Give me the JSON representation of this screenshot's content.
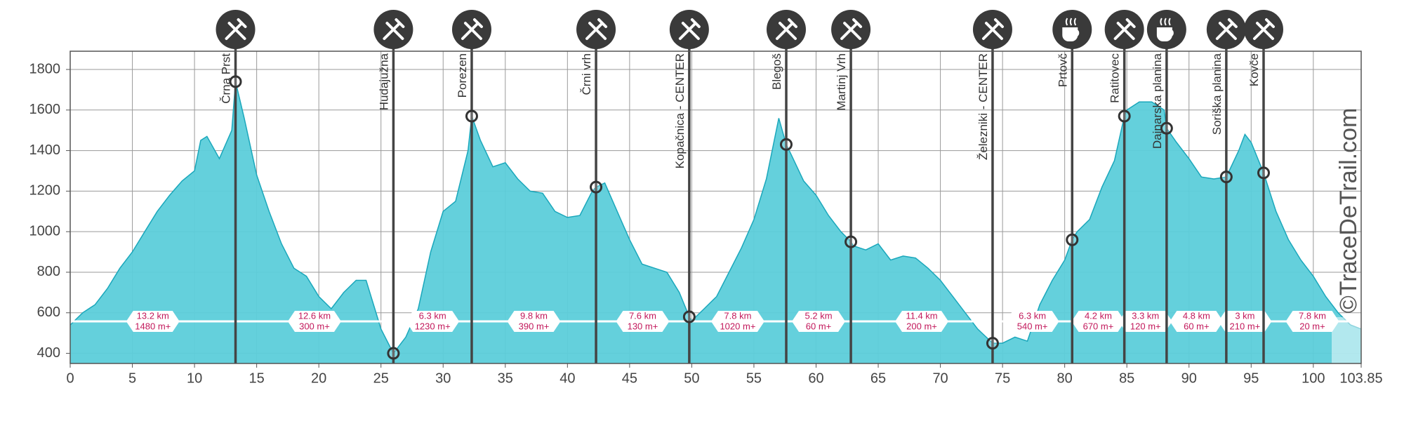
{
  "chart_data": {
    "type": "area",
    "x": [
      0,
      1,
      2,
      3,
      4,
      5,
      6,
      7,
      8,
      9,
      10,
      10.5,
      11,
      12,
      13,
      13.3,
      14,
      15,
      16,
      17,
      18,
      19,
      20,
      21,
      22,
      23,
      23.8,
      24.5,
      25,
      26,
      27,
      28,
      29,
      30,
      31,
      32,
      32.3,
      33,
      34,
      35,
      36,
      37,
      38,
      39,
      40,
      41,
      42,
      42.3,
      43,
      44,
      45,
      46,
      47,
      48,
      49,
      49.8,
      50,
      51,
      52,
      53,
      54,
      55,
      56,
      57,
      57.6,
      58,
      59,
      60,
      61,
      62,
      62.8,
      63,
      64,
      65,
      66,
      67,
      68,
      69,
      70,
      71,
      72,
      73,
      74.2,
      75,
      76,
      77,
      78,
      79,
      80,
      80.6,
      81,
      82,
      83,
      84,
      84.8,
      85,
      86,
      87,
      88,
      88.2,
      89,
      90,
      91,
      92,
      93,
      94,
      94.5,
      95,
      96,
      97,
      98,
      99,
      100,
      101,
      102,
      103,
      103.85
    ],
    "values": [
      540,
      600,
      640,
      720,
      820,
      900,
      1000,
      1100,
      1180,
      1250,
      1300,
      1450,
      1470,
      1360,
      1500,
      1740,
      1560,
      1280,
      1100,
      940,
      820,
      780,
      680,
      620,
      700,
      760,
      760,
      620,
      520,
      400,
      480,
      620,
      900,
      1100,
      1150,
      1400,
      1570,
      1450,
      1320,
      1340,
      1260,
      1200,
      1190,
      1100,
      1070,
      1080,
      1200,
      1220,
      1240,
      1100,
      960,
      840,
      820,
      800,
      700,
      580,
      560,
      620,
      680,
      800,
      920,
      1060,
      1260,
      1560,
      1430,
      1380,
      1250,
      1180,
      1080,
      1000,
      950,
      930,
      910,
      940,
      860,
      880,
      870,
      820,
      760,
      680,
      600,
      520,
      450,
      450,
      480,
      460,
      640,
      760,
      860,
      960,
      1000,
      1060,
      1220,
      1350,
      1570,
      1600,
      1640,
      1640,
      1600,
      1510,
      1440,
      1360,
      1270,
      1260,
      1270,
      1400,
      1480,
      1440,
      1290,
      1100,
      960,
      860,
      780,
      680,
      600,
      540,
      520
    ],
    "fill_color": "#5ccdda",
    "line_color": "#1aa7bb",
    "xlim": [
      0,
      103.85
    ],
    "ylim": [
      350,
      1890
    ],
    "xticks": [
      0,
      5,
      10,
      15,
      20,
      25,
      30,
      35,
      40,
      45,
      50,
      55,
      60,
      65,
      70,
      75,
      80,
      85,
      90,
      95,
      100,
      103.85
    ],
    "yticks": [
      400,
      600,
      800,
      1000,
      1200,
      1400,
      1600,
      1800
    ],
    "grid": true,
    "waypoints": [
      {
        "name": "Črna Prst",
        "km": 13.3,
        "elevation": 1740,
        "icon": "food",
        "color": "#333333"
      },
      {
        "name": "Hudajužna",
        "km": 26,
        "elevation": 400,
        "icon": "food",
        "color": "#333333"
      },
      {
        "name": "Porezen",
        "km": 32.3,
        "elevation": 1570,
        "icon": "food",
        "color": "#333333"
      },
      {
        "name": "Črni vrh",
        "km": 42.3,
        "elevation": 1220,
        "icon": "food",
        "color": "#333333"
      },
      {
        "name": "Kopačnica - CENTER",
        "km": 49.8,
        "elevation": 580,
        "icon": "food",
        "color": "#c2185b"
      },
      {
        "name": "Blegoš",
        "km": 57.6,
        "elevation": 1430,
        "icon": "food",
        "color": "#333333"
      },
      {
        "name": "Martinj Vrh",
        "km": 62.8,
        "elevation": 950,
        "icon": "food",
        "color": "#333333"
      },
      {
        "name": "Železniki - CENTER",
        "km": 74.2,
        "elevation": 450,
        "icon": "food",
        "color": "#c2185b"
      },
      {
        "name": "Prtovč",
        "km": 80.6,
        "elevation": 960,
        "icon": "coffee",
        "color": "#333333"
      },
      {
        "name": "Ratitovec",
        "km": 84.8,
        "elevation": 1570,
        "icon": "food",
        "color": "#333333"
      },
      {
        "name": "Dajnarska planina",
        "km": 88.2,
        "elevation": 1510,
        "icon": "coffee",
        "color": "#333333"
      },
      {
        "name": "Soriška planina",
        "km": 93,
        "elevation": 1270,
        "icon": "food",
        "color": "#333333"
      },
      {
        "name": "Kovče",
        "km": 96,
        "elevation": 1290,
        "icon": "food",
        "color": "#333333"
      }
    ],
    "segments": [
      {
        "distance": "13.2 km",
        "climb": "1480 m+"
      },
      {
        "distance": "12.6 km",
        "climb": "300 m+"
      },
      {
        "distance": "6.3 km",
        "climb": "1230 m+"
      },
      {
        "distance": "9.8 km",
        "climb": "390 m+"
      },
      {
        "distance": "7.6 km",
        "climb": "130 m+"
      },
      {
        "distance": "7.8 km",
        "climb": "1020 m+"
      },
      {
        "distance": "5.2 km",
        "climb": "60 m+"
      },
      {
        "distance": "11.4 km",
        "climb": "200 m+"
      },
      {
        "distance": "6.3 km",
        "climb": "540 m+"
      },
      {
        "distance": "4.2 km",
        "climb": "670 m+"
      },
      {
        "distance": "3.3 km",
        "climb": "120 m+"
      },
      {
        "distance": "4.8 km",
        "climb": "60 m+"
      },
      {
        "distance": "3 km",
        "climb": "210 m+"
      },
      {
        "distance": "7.8 km",
        "climb": "20 m+"
      }
    ],
    "watermark": "©TraceDeTrail.com"
  }
}
